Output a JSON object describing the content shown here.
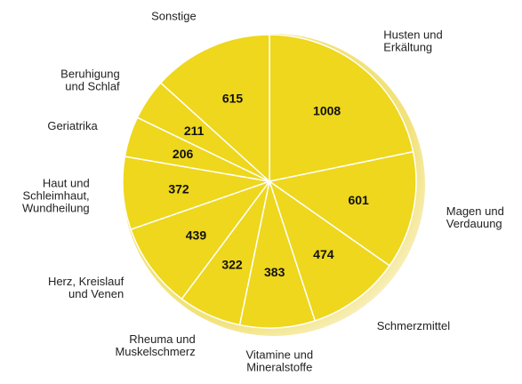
{
  "chart_data": {
    "type": "pie",
    "categories": [
      [
        "Husten und",
        "Erkältung"
      ],
      [
        "Magen und",
        "Verdauung"
      ],
      [
        "Schmerzmittel"
      ],
      [
        "Vitamine und",
        "Mineralstoffe"
      ],
      [
        "Rheuma und",
        "Muskelschmerz"
      ],
      [
        "Herz, Kreislauf",
        "und Venen"
      ],
      [
        "Haut und",
        "Schleimhaut,",
        "Wundheilung"
      ],
      [
        "Geriatrika"
      ],
      [
        "Beruhigung",
        "und Schlaf"
      ],
      [
        "Sonstige"
      ]
    ],
    "values": [
      1008,
      601,
      474,
      383,
      322,
      439,
      372,
      206,
      211,
      615
    ],
    "color": "#eed71c"
  }
}
